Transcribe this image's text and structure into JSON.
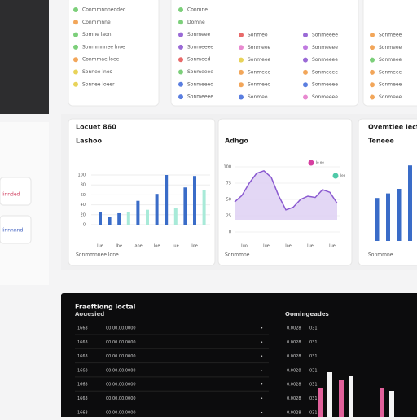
{
  "sidebar_cards": [
    "Iinnded",
    "Iinnnnnd"
  ],
  "lists": [
    {
      "x": 93,
      "y0": 12,
      "items": [
        {
          "label": "Conmmnnnedded",
          "color": "#7ccf7a"
        },
        {
          "label": "Conmmnne",
          "color": "#f2a65a"
        },
        {
          "label": "Somne laon",
          "color": "#7ccf7a"
        },
        {
          "label": "Sonmmnnee lnoe",
          "color": "#7ccf7a"
        },
        {
          "label": "Conmmae loee",
          "color": "#f2a65a"
        },
        {
          "label": "Sonnee lnos",
          "color": "#e8d35a"
        },
        {
          "label": "Sonnee loeer",
          "color": "#e8d35a"
        }
      ]
    },
    {
      "x": 222,
      "y0": 12,
      "items": [
        {
          "label": "Conmne",
          "color": "#7ccf7a"
        },
        {
          "label": "Domne",
          "color": "#7ccf7a"
        },
        {
          "label": "Sonmeee",
          "color": "#9a6ad6"
        },
        {
          "label": "Sonmeeee",
          "color": "#9a6ad6"
        },
        {
          "label": "Sonmeed",
          "color": "#e86a6a"
        },
        {
          "label": "Sonmeeee",
          "color": "#7ccf7a"
        },
        {
          "label": "Sonmeeed",
          "color": "#5a7ee0"
        },
        {
          "label": "Sonmeeee",
          "color": "#5a7ee0"
        }
      ]
    },
    {
      "x": 296,
      "y0": 43,
      "items": [
        {
          "label": "Sonmeo",
          "color": "#e86a6a"
        },
        {
          "label": "Sonmeee",
          "color": "#e88ad0"
        },
        {
          "label": "Sonmeee",
          "color": "#e8d35a"
        },
        {
          "label": "Sonmeee",
          "color": "#f2a65a"
        },
        {
          "label": "Sonmeeo",
          "color": "#f2a65a"
        },
        {
          "label": "Sonmeo",
          "color": "#5a7ee0"
        }
      ]
    },
    {
      "x": 375,
      "y0": 43,
      "items": [
        {
          "label": "Sonmeeee",
          "color": "#9a6ad6"
        },
        {
          "label": "Sonmeeee",
          "color": "#c07ae0"
        },
        {
          "label": "Sonmeeee",
          "color": "#9a6ad6"
        },
        {
          "label": "Sonmeeee",
          "color": "#f2a65a"
        },
        {
          "label": "Sonmeeee",
          "color": "#5a7ee0"
        },
        {
          "label": "Sonmeeee",
          "color": "#e88ad0"
        }
      ]
    },
    {
      "x": 457,
      "y0": 43,
      "items": [
        {
          "label": "Sonmeee",
          "color": "#f2a65a"
        },
        {
          "label": "Sonmeee",
          "color": "#f2a65a"
        },
        {
          "label": "Sonmeee",
          "color": "#7ccf7a"
        },
        {
          "label": "Sonmeee",
          "color": "#f2a65a"
        },
        {
          "label": "Sonmeee",
          "color": "#f2a65a"
        },
        {
          "label": "Sonmeee",
          "color": "#f2a65a"
        }
      ]
    }
  ],
  "chart_a": {
    "title": "Locuet 860",
    "subtitle": "Lashoo",
    "footer": "Sonmmnnee lone",
    "ylim": [
      0,
      100
    ],
    "yticks": [
      0,
      20,
      40,
      60,
      80,
      100
    ],
    "categories": [
      "Iue",
      null,
      "Ibe",
      null,
      "Iaoe",
      null,
      "Ioe",
      null,
      "Iue",
      null,
      "Ioe",
      null
    ],
    "values": [
      26,
      15,
      23,
      26,
      48,
      30,
      62,
      100,
      33,
      75,
      98,
      70
    ],
    "colors": [
      "#3a6cc8",
      "#3a6cc8",
      "#3a6cc8",
      "#a8ead8",
      "#3a6cc8",
      "#a8ead8",
      "#3a6cc8",
      "#3a6cc8",
      "#a8ead8",
      "#3a6cc8",
      "#3a6cc8",
      "#a8ead8"
    ]
  },
  "chart_b": {
    "title": "Adhgo",
    "footer": "Sonmmne",
    "legend": [
      "Ie ee",
      "Iee"
    ],
    "legend_colors": [
      "#d63fa0",
      "#4fc9a8"
    ],
    "ylim": [
      0,
      100
    ],
    "yticks": [
      0,
      25,
      50,
      75,
      100
    ],
    "x_labels": [
      "Iuo",
      "Iue",
      "Ioe",
      "Iue",
      "Iue"
    ],
    "values": [
      46,
      56,
      75,
      90,
      94,
      84,
      56,
      34,
      38,
      50,
      55,
      53,
      65,
      61,
      44
    ],
    "color": "#8a5ad0"
  },
  "chart_c": {
    "title": "Ovemtiee lectr",
    "subtitle": "Teneee",
    "footer": "Sonmmne",
    "values": [
      66,
      73,
      80,
      116
    ],
    "color": "#3a6cc8"
  },
  "table": {
    "title": "Fraeftiong loctal",
    "subtitle": "Aouesied",
    "side_title": "Oomingeades",
    "rows": [
      [
        "1663",
        "00.00.00.0000",
        "•"
      ],
      [
        "1663",
        "00.00.00.0000",
        "•"
      ],
      [
        "1663",
        "00.00.00.0000",
        "•"
      ],
      [
        "1663",
        "00.00.00.0000",
        "•"
      ],
      [
        "1663",
        "00.00.00.0000",
        "•"
      ],
      [
        "1663",
        "00.00.00.0000",
        "•"
      ],
      [
        "1663",
        "00.00.00.0000",
        "•"
      ]
    ],
    "side_rows": [
      [
        "0.0028",
        "031"
      ],
      [
        "0.0028",
        "031"
      ],
      [
        "0.0028",
        "031"
      ],
      [
        "0.0028",
        "031"
      ],
      [
        "0.0028",
        "031"
      ],
      [
        "0.0028",
        "031"
      ],
      [
        "0.0028",
        "031"
      ]
    ],
    "bars": [
      35,
      55,
      45,
      50,
      35,
      32
    ],
    "bar_colors": [
      "#e0609a",
      "#f4f4f4",
      "#e0609a",
      "#f4f4f4",
      "#e0609a",
      "#f4f4f4"
    ]
  }
}
